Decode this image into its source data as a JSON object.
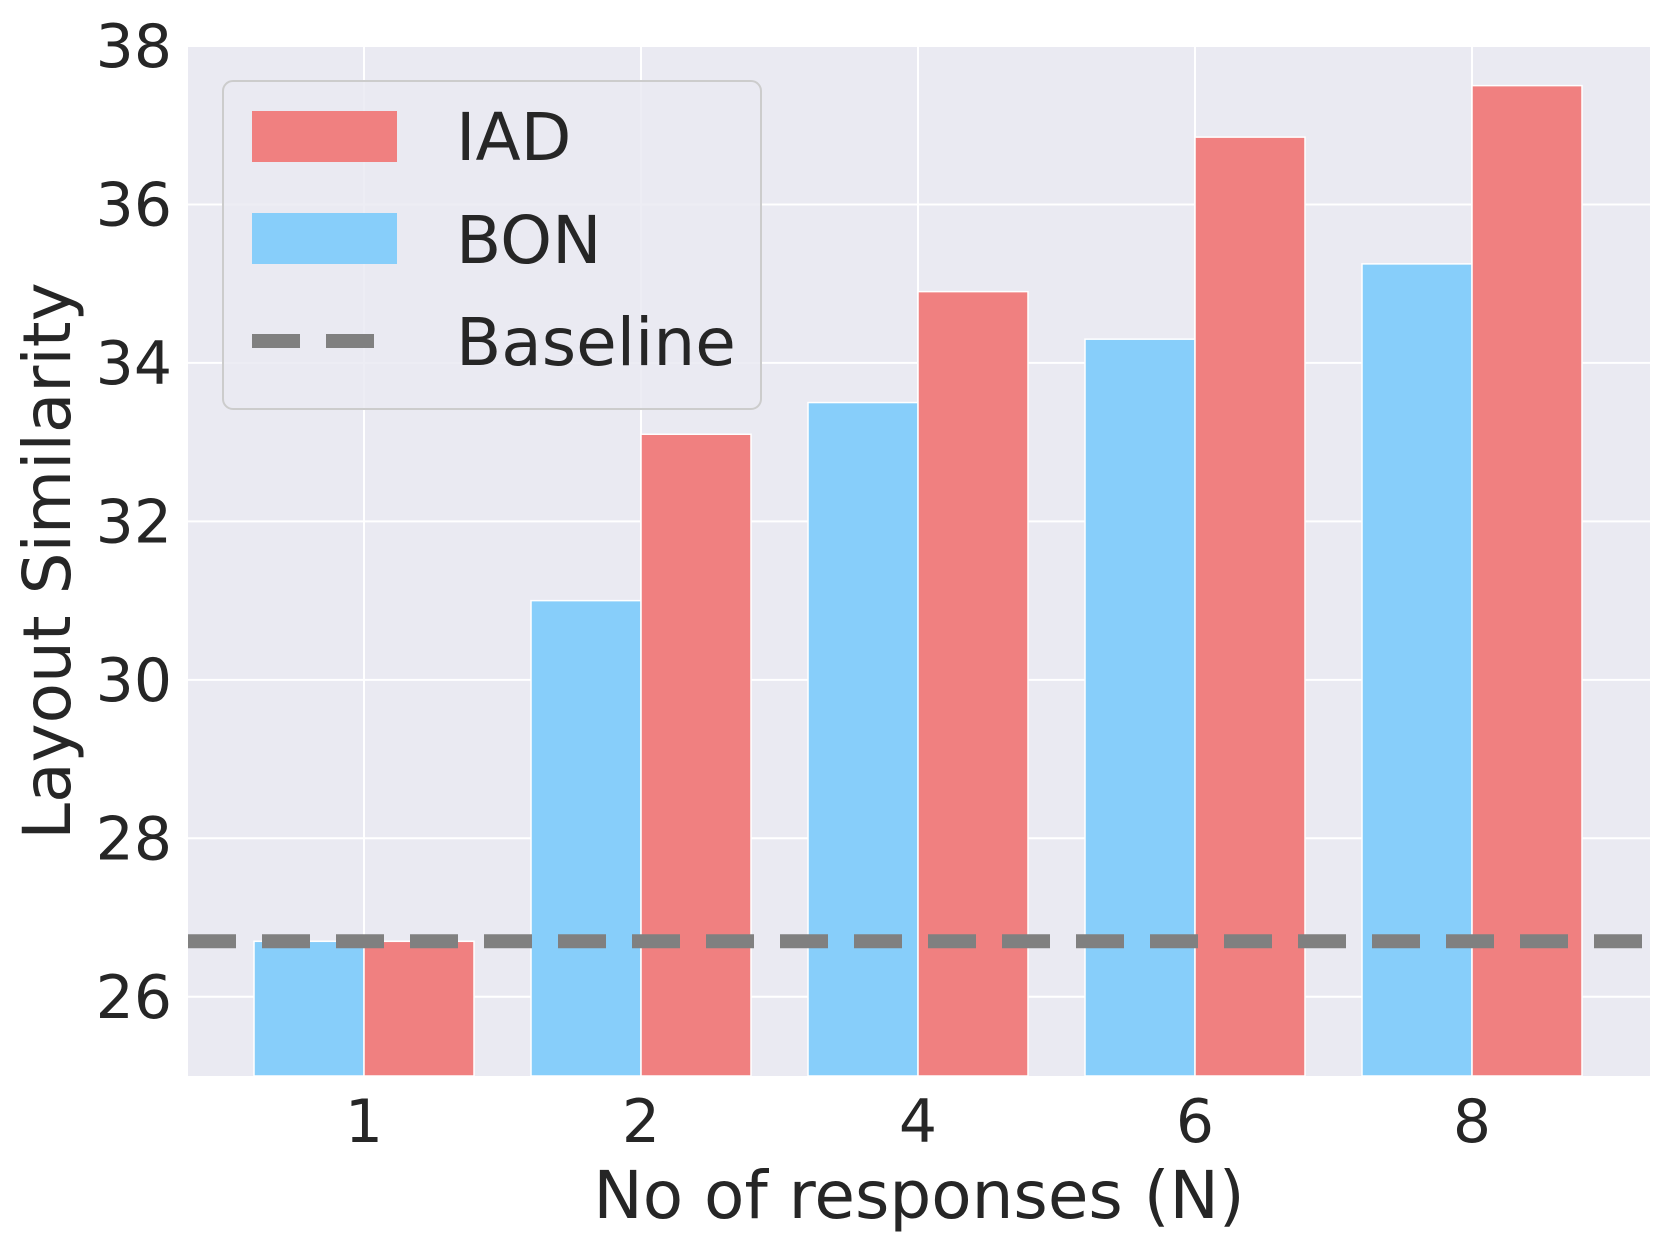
{
  "chart_data": {
    "type": "bar",
    "title": "",
    "xlabel": "No of responses (N)",
    "ylabel": "Layout Similarity",
    "categories": [
      "1",
      "2",
      "4",
      "6",
      "8"
    ],
    "series": [
      {
        "name": "BON",
        "color": "#87cefa",
        "values": [
          26.7,
          31.0,
          33.5,
          34.3,
          35.25
        ]
      },
      {
        "name": "IAD",
        "color": "#f08080",
        "values": [
          26.7,
          33.1,
          34.9,
          36.85,
          37.5
        ]
      }
    ],
    "baseline": {
      "name": "Baseline",
      "value": 26.7,
      "color": "#808080"
    },
    "ylim": [
      25,
      38
    ],
    "yticks": [
      26,
      28,
      30,
      32,
      34,
      36,
      38
    ],
    "grid": true,
    "legend": {
      "position": "top-left",
      "entries": [
        {
          "label": "IAD",
          "kind": "bar",
          "color": "#f08080"
        },
        {
          "label": "BON",
          "kind": "bar",
          "color": "#87cefa"
        },
        {
          "label": "Baseline",
          "kind": "dashed-line",
          "color": "#808080"
        }
      ]
    },
    "background": "#eaeaf2"
  }
}
